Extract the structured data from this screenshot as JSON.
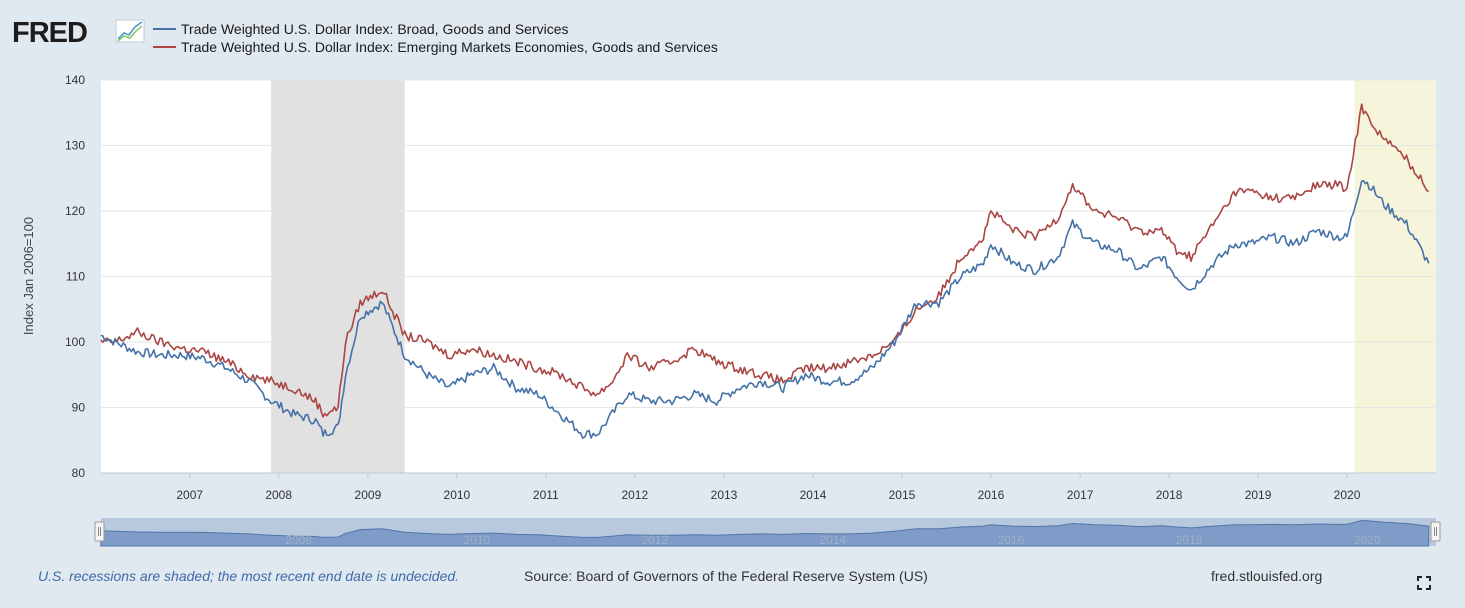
{
  "brand": {
    "name": "FRED"
  },
  "legend": [
    {
      "label": "Trade Weighted U.S. Dollar Index: Broad, Goods and Services",
      "color": "#4572a7"
    },
    {
      "label": "Trade Weighted U.S. Dollar Index: Emerging Markets Economies, Goods and Services",
      "color": "#aa4643"
    }
  ],
  "footer": {
    "note": "U.S. recessions are shaded; the most recent end date is undecided.",
    "source": "Source: Board of Governors of the Federal Reserve System (US)",
    "url": "fred.stlouisfed.org"
  },
  "navigator": {
    "labels": [
      "2008",
      "2010",
      "2012",
      "2014",
      "2016",
      "2018",
      "2020"
    ]
  },
  "chart_data": {
    "type": "line",
    "ylabel": "Index Jan 2006=100",
    "ylim": [
      80,
      140
    ],
    "yticks": [
      80,
      90,
      100,
      110,
      120,
      130,
      140
    ],
    "xlim": [
      "2006-01-02",
      "2020-12-31"
    ],
    "xticks": [
      "2007",
      "2008",
      "2009",
      "2010",
      "2011",
      "2012",
      "2013",
      "2014",
      "2015",
      "2016",
      "2017",
      "2018",
      "2019",
      "2020"
    ],
    "recessions": [
      {
        "start": "2007-12-01",
        "end": "2009-06-01",
        "color": "#e1e1e1"
      },
      {
        "start": "2020-02-01",
        "end": "2020-12-31",
        "color": "#f6f4da"
      }
    ],
    "grid": true,
    "series": [
      {
        "name": "Trade Weighted U.S. Dollar Index: Broad, Goods and Services",
        "color": "#4572a7",
        "x": [
          "2006-01",
          "2006-03",
          "2006-06",
          "2006-09",
          "2006-12",
          "2007-03",
          "2007-06",
          "2007-09",
          "2007-12",
          "2008-03",
          "2008-06",
          "2008-07",
          "2008-09",
          "2008-10",
          "2008-12",
          "2009-03",
          "2009-06",
          "2009-09",
          "2009-12",
          "2010-03",
          "2010-06",
          "2010-09",
          "2010-12",
          "2011-03",
          "2011-06",
          "2011-08",
          "2011-10",
          "2011-12",
          "2012-03",
          "2012-06",
          "2012-09",
          "2012-12",
          "2013-03",
          "2013-06",
          "2013-09",
          "2013-12",
          "2014-03",
          "2014-06",
          "2014-09",
          "2014-12",
          "2015-03",
          "2015-06",
          "2015-09",
          "2015-12",
          "2016-01",
          "2016-04",
          "2016-07",
          "2016-10",
          "2016-12",
          "2017-03",
          "2017-06",
          "2017-09",
          "2017-12",
          "2018-02",
          "2018-04",
          "2018-07",
          "2018-10",
          "2018-12",
          "2019-03",
          "2019-06",
          "2019-09",
          "2019-12",
          "2020-01",
          "2020-03",
          "2020-04",
          "2020-06",
          "2020-09",
          "2020-12"
        ],
        "values": [
          101,
          100,
          98.5,
          98,
          98,
          97.5,
          96,
          94,
          91,
          89,
          88,
          86,
          87,
          95,
          104,
          106,
          98,
          95,
          93,
          95,
          96,
          93,
          92,
          89,
          86,
          86,
          89,
          92,
          91,
          91,
          92,
          91,
          93,
          94,
          93,
          95,
          94,
          94,
          96,
          100,
          106,
          106,
          110,
          112,
          115,
          112,
          111,
          113,
          118,
          115,
          114,
          111,
          113,
          110,
          108,
          112,
          115,
          115,
          116,
          115,
          117,
          116,
          116,
          125,
          124,
          121,
          118,
          112
        ]
      },
      {
        "name": "Trade Weighted U.S. Dollar Index: Emerging Markets Economies, Goods and Services",
        "color": "#aa4643",
        "x": [
          "2006-01",
          "2006-03",
          "2006-06",
          "2006-09",
          "2006-12",
          "2007-03",
          "2007-06",
          "2007-09",
          "2007-12",
          "2008-03",
          "2008-06",
          "2008-07",
          "2008-09",
          "2008-10",
          "2008-12",
          "2009-03",
          "2009-06",
          "2009-09",
          "2009-12",
          "2010-03",
          "2010-06",
          "2010-09",
          "2010-12",
          "2011-03",
          "2011-06",
          "2011-08",
          "2011-10",
          "2011-12",
          "2012-03",
          "2012-06",
          "2012-09",
          "2012-12",
          "2013-03",
          "2013-06",
          "2013-09",
          "2013-12",
          "2014-03",
          "2014-06",
          "2014-09",
          "2014-12",
          "2015-03",
          "2015-06",
          "2015-09",
          "2015-12",
          "2016-01",
          "2016-04",
          "2016-07",
          "2016-10",
          "2016-12",
          "2017-03",
          "2017-06",
          "2017-09",
          "2017-12",
          "2018-02",
          "2018-04",
          "2018-07",
          "2018-10",
          "2018-12",
          "2019-03",
          "2019-06",
          "2019-09",
          "2019-12",
          "2020-01",
          "2020-03",
          "2020-04",
          "2020-06",
          "2020-09",
          "2020-12"
        ],
        "values": [
          100,
          100,
          101.5,
          100,
          99,
          98.5,
          97,
          95,
          94,
          93,
          91,
          89,
          90,
          100,
          106,
          108,
          101,
          100,
          98,
          99,
          98,
          97,
          96,
          95,
          93,
          92,
          94,
          98,
          96,
          97,
          99,
          97,
          96,
          95,
          94,
          96,
          96,
          97,
          98,
          100,
          105,
          107,
          113,
          116,
          120,
          117,
          116,
          119,
          124,
          120,
          119,
          117,
          117,
          114,
          113,
          118,
          123,
          123,
          122,
          122,
          124,
          124,
          123,
          136,
          134,
          131,
          128,
          123
        ]
      }
    ]
  }
}
